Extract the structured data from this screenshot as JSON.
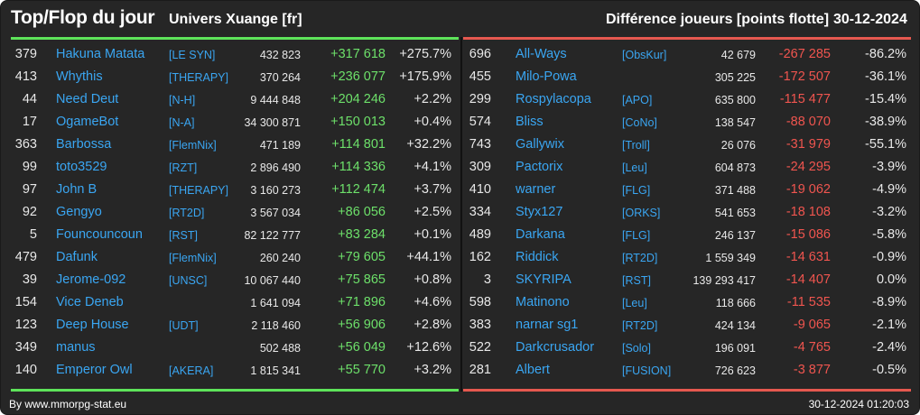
{
  "header": {
    "title": "Top/Flop du jour",
    "universe": "Univers Xuange [fr]",
    "metric": "Différence joueurs [points flotte]",
    "date": "30-12-2024"
  },
  "colors": {
    "accent_top": "#5ee35a",
    "accent_flop": "#e5584f",
    "link": "#3aa6f2",
    "background": "#262626"
  },
  "top": [
    {
      "rank": "379",
      "name": "Hakuna Matata",
      "tag": "[LE SYN]",
      "score": "432 823",
      "diff": "+317 618",
      "pct": "+275.7%"
    },
    {
      "rank": "413",
      "name": "Whythis",
      "tag": "[THERAPY]",
      "score": "370 264",
      "diff": "+236 077",
      "pct": "+175.9%"
    },
    {
      "rank": "44",
      "name": "Need Deut",
      "tag": "[N-H]",
      "score": "9 444 848",
      "diff": "+204 246",
      "pct": "+2.2%"
    },
    {
      "rank": "17",
      "name": "OgameBot",
      "tag": "[N-A]",
      "score": "34 300 871",
      "diff": "+150 013",
      "pct": "+0.4%"
    },
    {
      "rank": "363",
      "name": "Barbossa",
      "tag": "[FlemNix]",
      "score": "471 189",
      "diff": "+114 801",
      "pct": "+32.2%"
    },
    {
      "rank": "99",
      "name": "toto3529",
      "tag": "[RZT]",
      "score": "2 896 490",
      "diff": "+114 336",
      "pct": "+4.1%"
    },
    {
      "rank": "97",
      "name": "John B",
      "tag": "[THERAPY]",
      "score": "3 160 273",
      "diff": "+112 474",
      "pct": "+3.7%"
    },
    {
      "rank": "92",
      "name": "Gengyo",
      "tag": "[RT2D]",
      "score": "3 567 034",
      "diff": "+86 056",
      "pct": "+2.5%"
    },
    {
      "rank": "5",
      "name": "Founcouncoun",
      "tag": "[RST]",
      "score": "82 122 777",
      "diff": "+83 284",
      "pct": "+0.1%"
    },
    {
      "rank": "479",
      "name": "Dafunk",
      "tag": "[FlemNix]",
      "score": "260 240",
      "diff": "+79 605",
      "pct": "+44.1%"
    },
    {
      "rank": "39",
      "name": "Jerome-092",
      "tag": "[UNSC]",
      "score": "10 067 440",
      "diff": "+75 865",
      "pct": "+0.8%"
    },
    {
      "rank": "154",
      "name": "Vice Deneb",
      "tag": "",
      "score": "1 641 094",
      "diff": "+71 896",
      "pct": "+4.6%"
    },
    {
      "rank": "123",
      "name": "Deep House",
      "tag": "[UDT]",
      "score": "2 118 460",
      "diff": "+56 906",
      "pct": "+2.8%"
    },
    {
      "rank": "349",
      "name": "manus",
      "tag": "",
      "score": "502 488",
      "diff": "+56 049",
      "pct": "+12.6%"
    },
    {
      "rank": "140",
      "name": "Emperor Owl",
      "tag": "[AKERA]",
      "score": "1 815 341",
      "diff": "+55 770",
      "pct": "+3.2%"
    }
  ],
  "flop": [
    {
      "rank": "696",
      "name": "All-Ways",
      "tag": "[ObsKur]",
      "score": "42 679",
      "diff": "-267 285",
      "pct": "-86.2%"
    },
    {
      "rank": "455",
      "name": "Milo-Powa",
      "tag": "",
      "score": "305 225",
      "diff": "-172 507",
      "pct": "-36.1%"
    },
    {
      "rank": "299",
      "name": "Rospylacopa",
      "tag": "[APO]",
      "score": "635 800",
      "diff": "-115 477",
      "pct": "-15.4%"
    },
    {
      "rank": "574",
      "name": "Bliss",
      "tag": "[CoNo]",
      "score": "138 547",
      "diff": "-88 070",
      "pct": "-38.9%"
    },
    {
      "rank": "743",
      "name": "Gallywix",
      "tag": "[Troll]",
      "score": "26 076",
      "diff": "-31 979",
      "pct": "-55.1%"
    },
    {
      "rank": "309",
      "name": "Pactorix",
      "tag": "[Leu]",
      "score": "604 873",
      "diff": "-24 295",
      "pct": "-3.9%"
    },
    {
      "rank": "410",
      "name": "warner",
      "tag": "[FLG]",
      "score": "371 488",
      "diff": "-19 062",
      "pct": "-4.9%"
    },
    {
      "rank": "334",
      "name": "Styx127",
      "tag": "[ORKS]",
      "score": "541 653",
      "diff": "-18 108",
      "pct": "-3.2%"
    },
    {
      "rank": "489",
      "name": "Darkana",
      "tag": "[FLG]",
      "score": "246 137",
      "diff": "-15 086",
      "pct": "-5.8%"
    },
    {
      "rank": "162",
      "name": "Riddick",
      "tag": "[RT2D]",
      "score": "1 559 349",
      "diff": "-14 631",
      "pct": "-0.9%"
    },
    {
      "rank": "3",
      "name": "SKYRIPA",
      "tag": "[RST]",
      "score": "139 293 417",
      "diff": "-14 407",
      "pct": "0.0%"
    },
    {
      "rank": "598",
      "name": "Matinono",
      "tag": "[Leu]",
      "score": "118 666",
      "diff": "-11 535",
      "pct": "-8.9%"
    },
    {
      "rank": "383",
      "name": "narnar sg1",
      "tag": "[RT2D]",
      "score": "424 134",
      "diff": "-9 065",
      "pct": "-2.1%"
    },
    {
      "rank": "522",
      "name": "Darkcrusador",
      "tag": "[Solo]",
      "score": "196 091",
      "diff": "-4 765",
      "pct": "-2.4%"
    },
    {
      "rank": "281",
      "name": "Albert",
      "tag": "[FUSION]",
      "score": "726 623",
      "diff": "-3 877",
      "pct": "-0.5%"
    }
  ],
  "footer": {
    "source": "By www.mmorpg-stat.eu",
    "timestamp": "30-12-2024 01:20:03"
  }
}
